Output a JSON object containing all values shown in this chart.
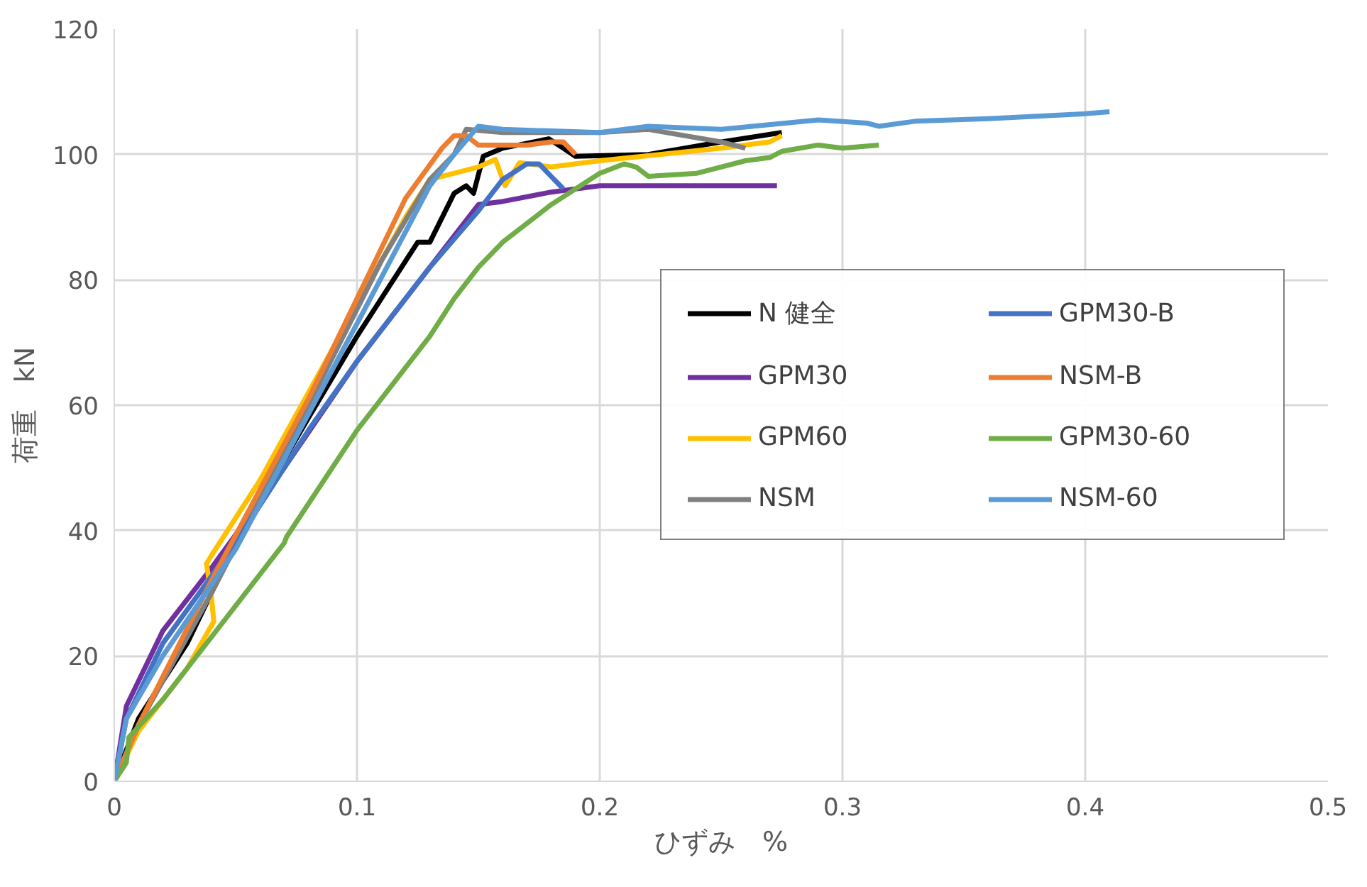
{
  "chart_data": {
    "type": "line",
    "xlabel": "ひずみ　%",
    "ylabel": "荷重　kN",
    "xlim": [
      0,
      0.5
    ],
    "xticks": [
      0,
      0.1,
      0.2,
      0.3,
      0.4,
      0.5
    ],
    "ylim": [
      0,
      120
    ],
    "yticks": [
      0,
      20,
      40,
      60,
      80,
      100,
      120
    ],
    "grid": true,
    "legend": "right",
    "marker": "none",
    "line_style": "solid",
    "series": [
      {
        "name": "N 健全",
        "color": "#000000",
        "x": [
          0,
          0.01,
          0.03,
          0.05,
          0.08,
          0.1,
          0.12,
          0.125,
          0.13,
          0.14,
          0.145,
          0.148,
          0.152,
          0.16,
          0.179,
          0.185,
          0.19,
          0.22,
          0.25,
          0.275
        ],
        "values": [
          0,
          10,
          22,
          38,
          58,
          71,
          83,
          86,
          86,
          93.8,
          95,
          93.8,
          99.7,
          101,
          102.5,
          101,
          99.7,
          100,
          102,
          103.5
        ]
      },
      {
        "name": "GPM30",
        "color": "#7030a0",
        "x": [
          0,
          0.005,
          0.02,
          0.04,
          0.07,
          0.1,
          0.13,
          0.15,
          0.16,
          0.18,
          0.2,
          0.273
        ],
        "values": [
          0,
          12,
          24,
          34,
          50,
          67,
          82,
          92,
          92.5,
          94,
          95,
          95
        ]
      },
      {
        "name": "GPM60",
        "color": "#ffc000",
        "x": [
          0,
          0.01,
          0.03,
          0.041,
          0.04,
          0.038,
          0.04,
          0.06,
          0.1,
          0.12,
          0.13,
          0.15,
          0.157,
          0.161,
          0.167,
          0.18,
          0.2,
          0.25,
          0.27,
          0.275
        ],
        "values": [
          0,
          8,
          18,
          25.5,
          29.5,
          34.7,
          36,
          48,
          76,
          90,
          96,
          98,
          99.2,
          95,
          98.7,
          98,
          99,
          101,
          102,
          103
        ]
      },
      {
        "name": "NSM",
        "color": "#808080",
        "x": [
          0,
          0.01,
          0.04,
          0.08,
          0.11,
          0.13,
          0.14,
          0.145,
          0.16,
          0.2,
          0.22,
          0.25,
          0.26
        ],
        "values": [
          0,
          9,
          30,
          60,
          83,
          96,
          100,
          104,
          103.5,
          103.5,
          104,
          102,
          101
        ]
      },
      {
        "name": "GPM30-B",
        "color": "#4472c4",
        "x": [
          0,
          0.005,
          0.02,
          0.05,
          0.08,
          0.1,
          0.13,
          0.15,
          0.16,
          0.17,
          0.175,
          0.18,
          0.185
        ],
        "values": [
          0,
          10,
          22,
          38,
          56,
          67,
          82,
          91,
          96,
          98.5,
          98.5,
          96.5,
          94.5
        ]
      },
      {
        "name": "NSM-B",
        "color": "#ed7d31",
        "x": [
          0,
          0.01,
          0.04,
          0.08,
          0.12,
          0.135,
          0.14,
          0.145,
          0.15,
          0.17,
          0.18,
          0.185,
          0.19
        ],
        "values": [
          0,
          9,
          32,
          61,
          93,
          101,
          103,
          103,
          101.5,
          101.5,
          102,
          102,
          100
        ]
      },
      {
        "name": "GPM30-60",
        "color": "#70ad47",
        "x": [
          0,
          0.005,
          0.006,
          0.02,
          0.04,
          0.07,
          0.071,
          0.1,
          0.13,
          0.14,
          0.15,
          0.16,
          0.18,
          0.2,
          0.21,
          0.215,
          0.22,
          0.24,
          0.26,
          0.27,
          0.275,
          0.29,
          0.3,
          0.315
        ],
        "values": [
          0,
          3,
          7,
          13,
          23,
          38,
          39,
          56,
          71,
          77,
          82,
          86,
          92,
          97,
          98.5,
          98,
          96.5,
          97,
          99,
          99.5,
          100.5,
          101.5,
          101,
          101.5
        ]
      },
      {
        "name": "NSM-60",
        "color": "#5b9bd5",
        "x": [
          0,
          0.005,
          0.02,
          0.05,
          0.1,
          0.13,
          0.14,
          0.15,
          0.16,
          0.2,
          0.22,
          0.25,
          0.29,
          0.31,
          0.315,
          0.33,
          0.36,
          0.4,
          0.41
        ],
        "values": [
          0,
          10,
          20,
          37,
          73,
          95,
          100,
          104.5,
          104,
          103.5,
          104.5,
          104,
          105.5,
          105,
          104.5,
          105.3,
          105.7,
          106.5,
          106.8
        ]
      }
    ]
  }
}
